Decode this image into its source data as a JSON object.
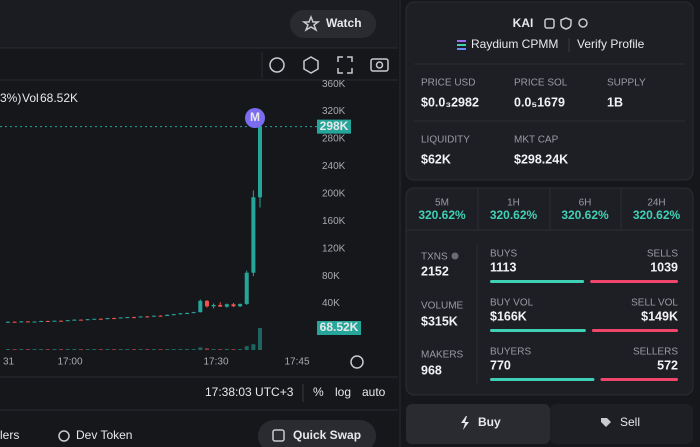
{
  "header": {
    "watch": "Watch"
  },
  "chart": {
    "legend_fragment": "3%)",
    "volume_label": "Vol",
    "volume_value": "68.52K",
    "price_label": "298K",
    "volume_box": "68.52K",
    "marker": "M",
    "ylim": [
      0,
      366
    ],
    "yticks": [
      {
        "value": 360,
        "label": "360K"
      },
      {
        "value": 320,
        "label": "320K"
      },
      {
        "value": 280,
        "label": "280K"
      },
      {
        "value": 240,
        "label": "240K"
      },
      {
        "value": 200,
        "label": "200K"
      },
      {
        "value": 160,
        "label": "160K"
      },
      {
        "value": 120,
        "label": "120K"
      },
      {
        "value": 80,
        "label": "80K"
      },
      {
        "value": 40,
        "label": "40K"
      }
    ],
    "xticks": [
      31,
      "17:00",
      "17:30",
      "17:45"
    ],
    "candles": [
      {
        "o": 13,
        "h": 14,
        "l": 12,
        "c": 13.5
      },
      {
        "o": 13.5,
        "h": 14,
        "l": 13,
        "c": 13
      },
      {
        "o": 13,
        "h": 14.5,
        "l": 12.5,
        "c": 14
      },
      {
        "o": 14,
        "h": 14.5,
        "l": 13,
        "c": 13.2
      },
      {
        "o": 13.2,
        "h": 14,
        "l": 12.8,
        "c": 13.8
      },
      {
        "o": 13.8,
        "h": 15,
        "l": 13.5,
        "c": 14.6
      },
      {
        "o": 14.6,
        "h": 15,
        "l": 13.8,
        "c": 14
      },
      {
        "o": 14,
        "h": 15.2,
        "l": 13.9,
        "c": 15
      },
      {
        "o": 15,
        "h": 15.5,
        "l": 14.2,
        "c": 14.5
      },
      {
        "o": 14.5,
        "h": 16,
        "l": 14.3,
        "c": 15.8
      },
      {
        "o": 15.8,
        "h": 17,
        "l": 15.5,
        "c": 16.5
      },
      {
        "o": 16.5,
        "h": 17,
        "l": 15.8,
        "c": 16
      },
      {
        "o": 16,
        "h": 17.5,
        "l": 15.8,
        "c": 17.2
      },
      {
        "o": 17.2,
        "h": 18,
        "l": 16.8,
        "c": 17.8
      },
      {
        "o": 17.8,
        "h": 18.5,
        "l": 17,
        "c": 17.3
      },
      {
        "o": 17.3,
        "h": 19,
        "l": 17.2,
        "c": 18.8
      },
      {
        "o": 18.8,
        "h": 19.5,
        "l": 18,
        "c": 18.4
      },
      {
        "o": 18.4,
        "h": 20,
        "l": 18.2,
        "c": 19.7
      },
      {
        "o": 19.7,
        "h": 20.5,
        "l": 19,
        "c": 20.2
      },
      {
        "o": 20.2,
        "h": 21,
        "l": 19.5,
        "c": 19.8
      },
      {
        "o": 19.8,
        "h": 21.5,
        "l": 19.6,
        "c": 21.2
      },
      {
        "o": 21.2,
        "h": 22,
        "l": 20.5,
        "c": 21
      },
      {
        "o": 21,
        "h": 22.5,
        "l": 20.8,
        "c": 22.3
      },
      {
        "o": 22.3,
        "h": 23,
        "l": 21.5,
        "c": 21.9
      },
      {
        "o": 21.9,
        "h": 24,
        "l": 21.8,
        "c": 23.6
      },
      {
        "o": 23.6,
        "h": 25,
        "l": 23,
        "c": 24.5
      },
      {
        "o": 24.5,
        "h": 26,
        "l": 23.8,
        "c": 25.8
      },
      {
        "o": 25.8,
        "h": 27,
        "l": 25,
        "c": 26.2
      },
      {
        "o": 26.2,
        "h": 28,
        "l": 26,
        "c": 27.5
      },
      {
        "o": 27.5,
        "h": 46,
        "l": 27,
        "c": 44
      },
      {
        "o": 44,
        "h": 45,
        "l": 34,
        "c": 36
      },
      {
        "o": 36,
        "h": 40,
        "l": 33,
        "c": 38
      },
      {
        "o": 38,
        "h": 42,
        "l": 35,
        "c": 35.5
      },
      {
        "o": 35.5,
        "h": 40,
        "l": 34,
        "c": 39
      },
      {
        "o": 39,
        "h": 41,
        "l": 35,
        "c": 36
      },
      {
        "o": 36,
        "h": 40,
        "l": 35,
        "c": 39.5
      },
      {
        "o": 39.5,
        "h": 88,
        "l": 38,
        "c": 85
      },
      {
        "o": 85,
        "h": 205,
        "l": 80,
        "c": 195
      },
      {
        "o": 195,
        "h": 300,
        "l": 180,
        "c": 298
      }
    ],
    "volumes": [
      1.2,
      0.8,
      1.5,
      1,
      0.9,
      1.3,
      1.1,
      1.6,
      0.9,
      1.4,
      1.8,
      1.2,
      1.5,
      1.3,
      1.1,
      1.7,
      1.4,
      1.9,
      1.6,
      1.2,
      2,
      1.5,
      1.8,
      1.3,
      2.2,
      2.5,
      2.8,
      2.1,
      3,
      8,
      5.5,
      3.2,
      2.8,
      3.5,
      2.6,
      3.1,
      12,
      18,
      68.52
    ]
  },
  "footer": {
    "time": "17:38:03 UTC+3",
    "percent": "%",
    "log": "log",
    "auto": "auto"
  },
  "tabs": {
    "holders": "lers",
    "dev_token": "Dev Token",
    "quick_swap": "Quick Swap"
  },
  "token": {
    "name": "KAI",
    "dex": "Raydium CPMM",
    "verify": "Verify Profile",
    "fields": [
      {
        "label": "PRICE USD",
        "value": "$0.0₃2982"
      },
      {
        "label": "PRICE SOL",
        "value": "0.0₅1679"
      },
      {
        "label": "SUPPLY",
        "value": "1B"
      },
      {
        "label": "LIQUIDITY",
        "value": "$62K"
      },
      {
        "label": "MKT CAP",
        "value": "$298.24K"
      }
    ]
  },
  "timeframes": [
    {
      "label": "5M",
      "change": "320.62%"
    },
    {
      "label": "1H",
      "change": "320.62%"
    },
    {
      "label": "6H",
      "change": "320.62%"
    },
    {
      "label": "24H",
      "change": "320.62%"
    }
  ],
  "stats": {
    "txns_label": "TXNS",
    "txns": 2152,
    "volume_label": "VOLUME",
    "volume": "$315K",
    "makers_label": "MAKERS",
    "makers": 968,
    "buys_label": "BUYS",
    "buys": 1113,
    "sells_label": "SELLS",
    "sells": 1039,
    "buy_vol_label": "BUY VOL",
    "buy_vol": {
      "value": 166,
      "label": "$166K"
    },
    "sell_vol_label": "SELL VOL",
    "sell_vol": {
      "value": 149,
      "label": "$149K"
    },
    "buyers_label": "BUYERS",
    "buyers": 770,
    "sellers_label": "SELLERS",
    "sellers": 572
  },
  "trade": {
    "buy": "Buy",
    "sell": "Sell"
  }
}
